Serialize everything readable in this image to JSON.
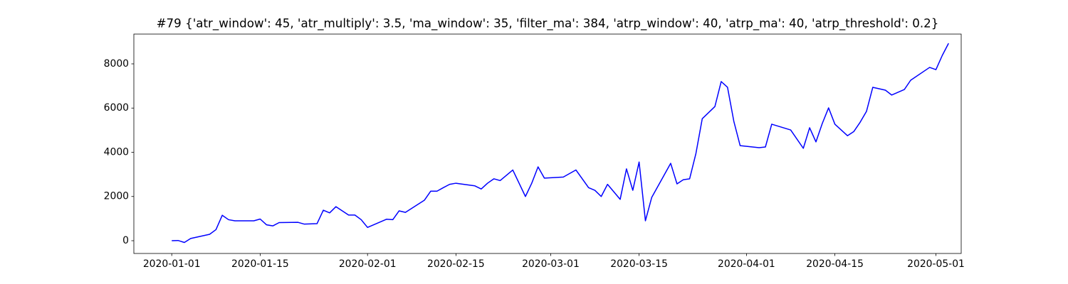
{
  "chart_data": {
    "type": "line",
    "title": "#79 {'atr_window': 45, 'atr_multiply': 3.5, 'ma_window': 35, 'filter_ma': 384, 'atrp_window': 40, 'atrp_ma': 40, 'atrp_threshold': 0.2}",
    "x": [
      "2020-01-01",
      "2020-01-02",
      "2020-01-03",
      "2020-01-04",
      "2020-01-07",
      "2020-01-08",
      "2020-01-09",
      "2020-01-10",
      "2020-01-11",
      "2020-01-14",
      "2020-01-15",
      "2020-01-16",
      "2020-01-17",
      "2020-01-18",
      "2020-01-21",
      "2020-01-22",
      "2020-01-24",
      "2020-01-25",
      "2020-01-26",
      "2020-01-27",
      "2020-01-29",
      "2020-01-30",
      "2020-01-31",
      "2020-02-01",
      "2020-02-04",
      "2020-02-05",
      "2020-02-06",
      "2020-02-07",
      "2020-02-10",
      "2020-02-11",
      "2020-02-12",
      "2020-02-13",
      "2020-02-14",
      "2020-02-15",
      "2020-02-18",
      "2020-02-19",
      "2020-02-20",
      "2020-02-21",
      "2020-02-22",
      "2020-02-24",
      "2020-02-25",
      "2020-02-26",
      "2020-02-27",
      "2020-02-28",
      "2020-02-29",
      "2020-03-03",
      "2020-03-05",
      "2020-03-07",
      "2020-03-08",
      "2020-03-09",
      "2020-03-10",
      "2020-03-12",
      "2020-03-13",
      "2020-03-14",
      "2020-03-15",
      "2020-03-16",
      "2020-03-17",
      "2020-03-20",
      "2020-03-21",
      "2020-03-22",
      "2020-03-23",
      "2020-03-24",
      "2020-03-25",
      "2020-03-27",
      "2020-03-28",
      "2020-03-29",
      "2020-03-30",
      "2020-03-31",
      "2020-04-03",
      "2020-04-04",
      "2020-04-05",
      "2020-04-08",
      "2020-04-10",
      "2020-04-11",
      "2020-04-12",
      "2020-04-13",
      "2020-04-14",
      "2020-04-15",
      "2020-04-17",
      "2020-04-18",
      "2020-04-19",
      "2020-04-20",
      "2020-04-21",
      "2020-04-23",
      "2020-04-24",
      "2020-04-26",
      "2020-04-27",
      "2020-04-30",
      "2020-05-01",
      "2020-05-02",
      "2020-05-03"
    ],
    "series": [
      {
        "color": "#0000ff",
        "values": [
          0,
          10,
          -80,
          100,
          290,
          500,
          1150,
          950,
          900,
          900,
          980,
          720,
          670,
          820,
          830,
          750,
          770,
          1380,
          1260,
          1540,
          1160,
          1160,
          950,
          600,
          970,
          950,
          1350,
          1280,
          1830,
          2240,
          2240,
          2400,
          2550,
          2600,
          2480,
          2340,
          2600,
          2800,
          2720,
          3200,
          2600,
          2000,
          2600,
          3340,
          2830,
          2880,
          3200,
          2400,
          2280,
          2000,
          2550,
          1870,
          3250,
          2280,
          3560,
          900,
          1960,
          3500,
          2570,
          2760,
          2800,
          3950,
          5520,
          6070,
          7200,
          6940,
          5400,
          4300,
          4210,
          4240,
          5270,
          5010,
          4180,
          5110,
          4470,
          5300,
          6010,
          5270,
          4750,
          4940,
          5360,
          5850,
          6940,
          6810,
          6590,
          6840,
          7260,
          7840,
          7740,
          8380,
          8930
        ]
      }
    ],
    "xlim": [
      "2019-12-26",
      "2020-05-05"
    ],
    "xticks": [
      "2020-01-01",
      "2020-01-15",
      "2020-02-01",
      "2020-02-15",
      "2020-03-01",
      "2020-03-15",
      "2020-04-01",
      "2020-04-15",
      "2020-05-01"
    ],
    "ylim": [
      -578,
      9348
    ],
    "yticks": [
      0,
      2000,
      4000,
      6000,
      8000
    ]
  }
}
